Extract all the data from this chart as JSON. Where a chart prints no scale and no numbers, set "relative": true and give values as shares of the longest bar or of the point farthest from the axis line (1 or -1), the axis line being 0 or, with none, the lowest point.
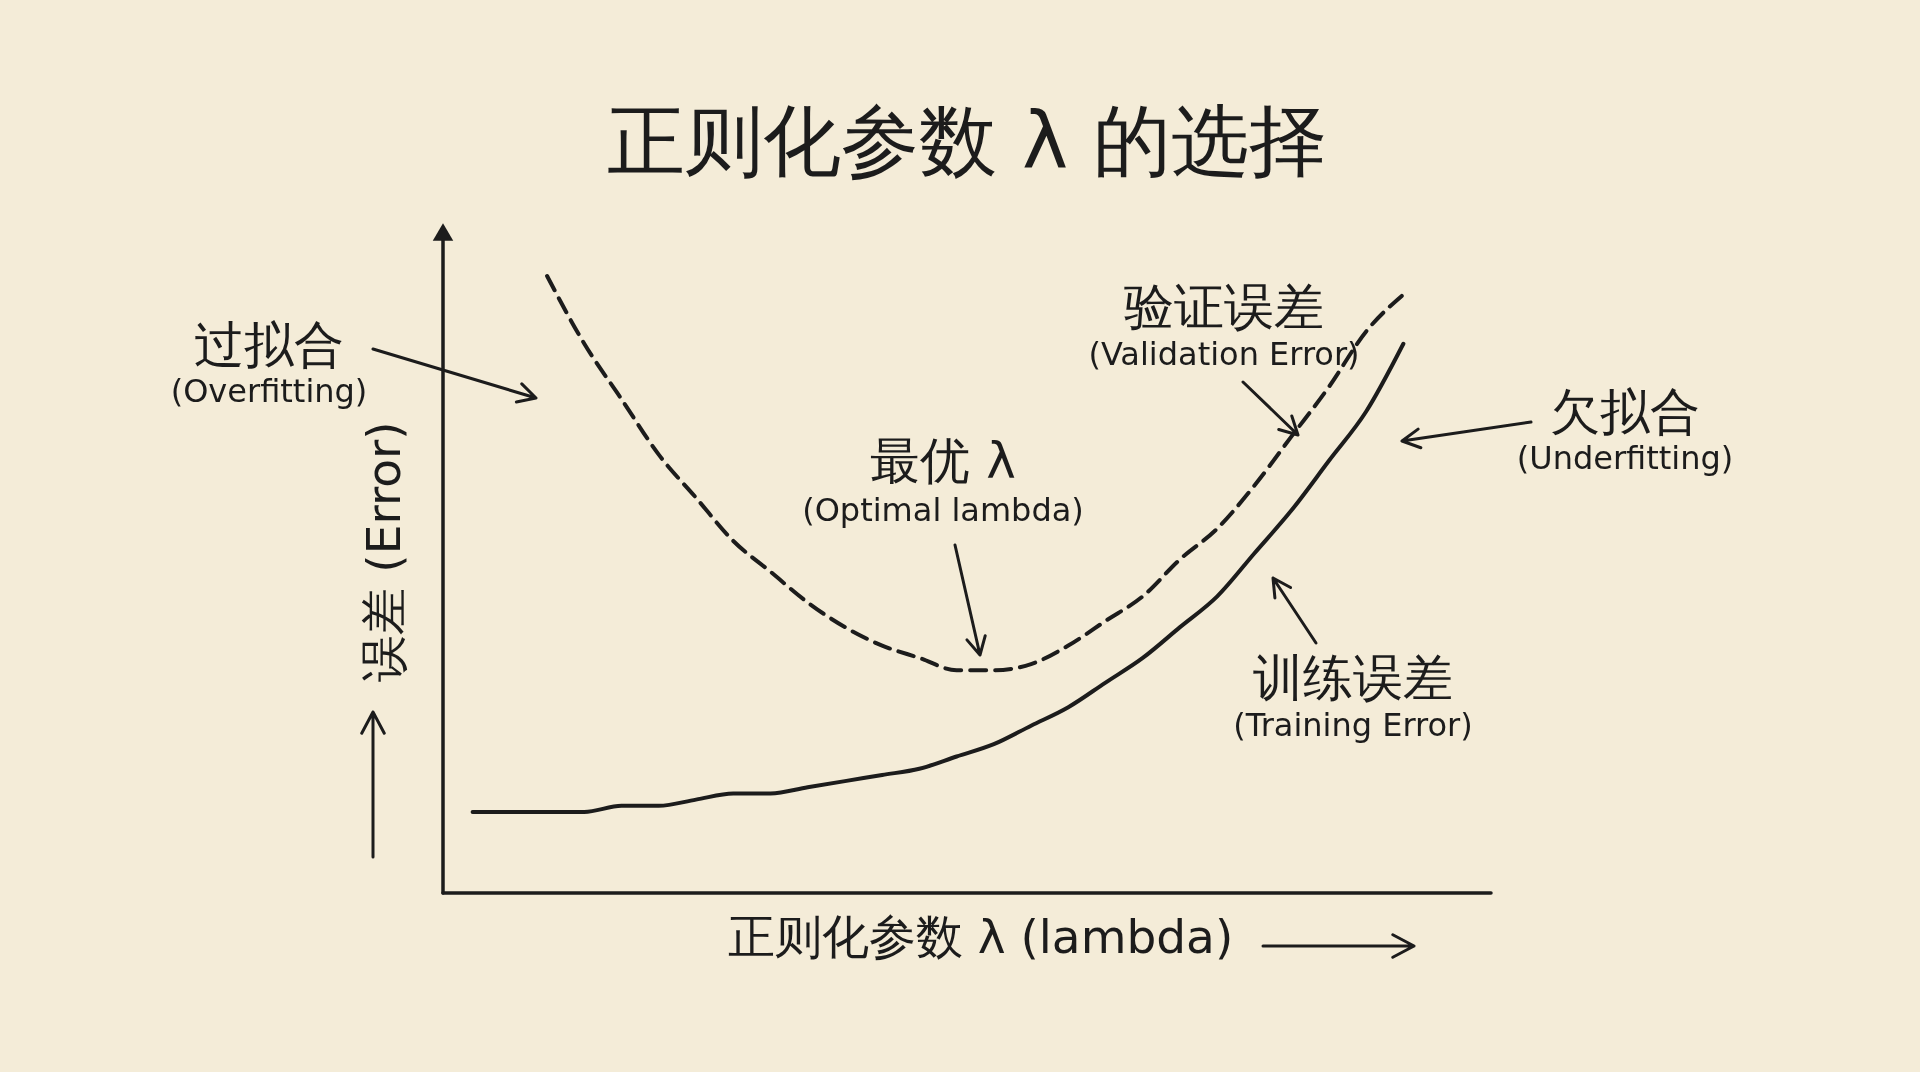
{
  "chart_data": {
    "type": "line",
    "title": "正则化参数 λ 的选择",
    "xlabel": "正则化参数 λ (lambda)",
    "ylabel": "误差 (Error)",
    "relative": true,
    "grid": false,
    "tick_labels": false,
    "categories": [
      null,
      null,
      null,
      null,
      null,
      null,
      null,
      null,
      null,
      null,
      null,
      null,
      null,
      null,
      null,
      null,
      null,
      null,
      null,
      null,
      null,
      null,
      null,
      null,
      null,
      null
    ],
    "series": [
      {
        "name": "验证误差\n(Validation Error)",
        "color": "#1c1c1c",
        "line_style": "dashed",
        "values": [
          null,
          null,
          1.0,
          0.89,
          0.8,
          0.71,
          0.64,
          0.57,
          0.52,
          0.47,
          0.43,
          0.4,
          0.38,
          0.36,
          0.36,
          0.37,
          0.4,
          0.44,
          0.48,
          0.54,
          0.59,
          0.66,
          0.74,
          0.82,
          0.91,
          0.97
        ]
      },
      {
        "name": "训练误差\n(Training Error)",
        "color": "#1c1c1c",
        "line_style": "solid",
        "values": [
          0.13,
          0.13,
          0.13,
          0.13,
          0.14,
          0.14,
          0.15,
          0.16,
          0.16,
          0.17,
          0.18,
          0.19,
          0.2,
          0.22,
          0.24,
          0.27,
          0.3,
          0.34,
          0.38,
          0.43,
          0.48,
          0.55,
          0.62,
          0.7,
          0.78,
          0.89
        ]
      }
    ],
    "annotations": [
      "过拟合\n(Overfitting)",
      "最优 λ\n(Optimal lambda)",
      "欠拟合\n(Underfitting)"
    ]
  }
}
